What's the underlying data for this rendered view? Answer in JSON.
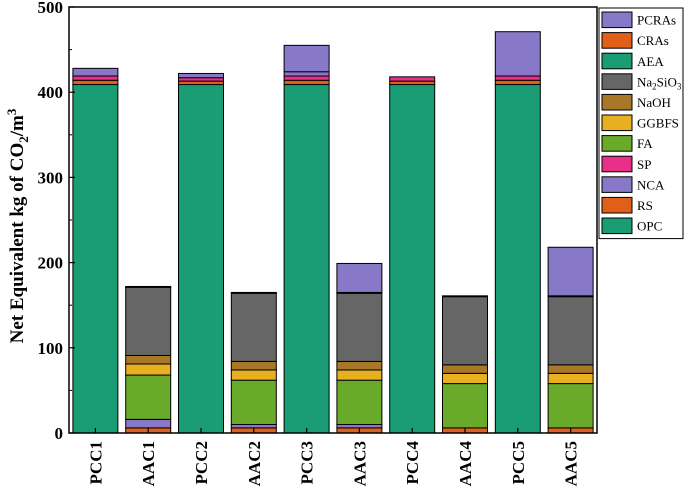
{
  "chart_data": {
    "type": "bar",
    "stacked": true,
    "title": "",
    "xlabel": "",
    "ylabel": "Net Equivalent kg of CO₂/m³",
    "ylim": [
      0,
      500
    ],
    "yticks": [
      "0",
      "100",
      "200",
      "300",
      "400",
      "500"
    ],
    "categories": [
      "PCC1",
      "AAC1",
      "PCC2",
      "AAC2",
      "PCC3",
      "AAC3",
      "PCC4",
      "AAC4",
      "PCC5",
      "AAC5"
    ],
    "legend_position": "top-right",
    "series": [
      {
        "name": "OPC",
        "color": "#1a9c74",
        "values": [
          409,
          0,
          409,
          0,
          409,
          0,
          409,
          0,
          409,
          0
        ]
      },
      {
        "name": "RS",
        "color": "#e0601a",
        "values": [
          0,
          6,
          0,
          6,
          0,
          6,
          0,
          6,
          0,
          6
        ]
      },
      {
        "name": "NCA",
        "color": "#8878c8",
        "values": [
          0,
          10,
          0,
          4,
          0,
          4,
          0,
          0,
          0,
          0
        ]
      },
      {
        "name": "SP",
        "color": "#e8308a",
        "values": [
          0,
          0,
          0,
          0,
          0,
          0,
          0,
          0,
          0,
          0
        ]
      },
      {
        "name": "FA",
        "color": "#6aaa2a",
        "values": [
          0,
          52,
          0,
          52,
          0,
          52,
          0,
          52,
          0,
          52
        ]
      },
      {
        "name": "GGBFS",
        "color": "#e8b020",
        "values": [
          0,
          13,
          0,
          12,
          0,
          12,
          0,
          12,
          0,
          12
        ]
      },
      {
        "name": "NaOH",
        "color": "#a87828",
        "values": [
          0,
          10,
          0,
          10,
          0,
          10,
          0,
          10,
          0,
          10
        ]
      },
      {
        "name": "Na2SiO3",
        "color": "#666666",
        "values": [
          0,
          80,
          0,
          80,
          0,
          80,
          0,
          80,
          0,
          80
        ]
      },
      {
        "name": "AEA",
        "color": "#1a9c74",
        "values": [
          0,
          1,
          0,
          1,
          0,
          1,
          0,
          1,
          0,
          1
        ]
      },
      {
        "name": "CRAs",
        "color": "#e0601a",
        "values": [
          5,
          0,
          4,
          0,
          5,
          0,
          4,
          0,
          5,
          0
        ]
      },
      {
        "name": "SP (PCC)",
        "color": "#e8308a",
        "values": [
          5,
          0,
          4,
          0,
          5,
          0,
          5,
          0,
          5,
          0
        ]
      },
      {
        "name": "NCA (PCC)",
        "color": "#8878c8",
        "values": [
          9,
          0,
          5,
          0,
          5,
          0,
          0,
          0,
          0,
          0
        ]
      },
      {
        "name": "PCRAs",
        "color": "#8878c8",
        "values": [
          0,
          0,
          0,
          0,
          31,
          34,
          0,
          0,
          52,
          57
        ]
      }
    ],
    "legend": [
      {
        "label": "PCRAs",
        "color": "#8878c8"
      },
      {
        "label": "CRAs",
        "color": "#e0601a"
      },
      {
        "label": "AEA",
        "color": "#1a9c74"
      },
      {
        "label": "Na2SiO3",
        "color": "#666666"
      },
      {
        "label": "NaOH",
        "color": "#a87828"
      },
      {
        "label": "GGBFS",
        "color": "#e8b020"
      },
      {
        "label": "FA",
        "color": "#6aaa2a"
      },
      {
        "label": "SP",
        "color": "#e8308a"
      },
      {
        "label": "NCA",
        "color": "#8878c8"
      },
      {
        "label": "RS",
        "color": "#e0601a"
      },
      {
        "label": "OPC",
        "color": "#1a9c74"
      }
    ]
  }
}
